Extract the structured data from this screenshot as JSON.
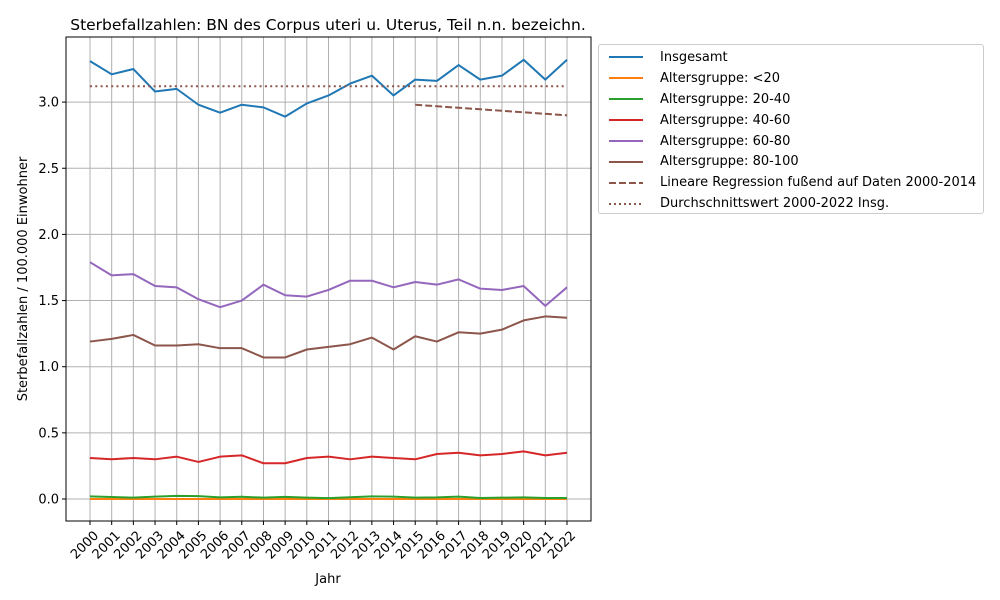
{
  "chart_data": {
    "type": "line",
    "title": "Sterbefallzahlen: BN des Corpus uteri u. Uterus, Teil n.n. bezeichn.",
    "xlabel": "Jahr",
    "ylabel": "Sterbefallzahlen / 100.000 Einwohner",
    "ylim": [
      -0.17,
      3.47
    ],
    "yticks": [
      0.0,
      0.5,
      1.0,
      1.5,
      2.0,
      2.5,
      3.0
    ],
    "ytick_labels": [
      "0.0",
      "0.5",
      "1.0",
      "1.5",
      "2.0",
      "2.5",
      "3.0"
    ],
    "grid": true,
    "legend_position": "outside upper right",
    "x": [
      2000,
      2001,
      2002,
      2003,
      2004,
      2005,
      2006,
      2007,
      2008,
      2009,
      2010,
      2011,
      2012,
      2013,
      2014,
      2015,
      2016,
      2017,
      2018,
      2019,
      2020,
      2021,
      2022
    ],
    "series": [
      {
        "name": "Insgesamt",
        "color": "#1f77b4",
        "style": "solid",
        "values": [
          3.31,
          3.21,
          3.25,
          3.08,
          3.1,
          2.98,
          2.92,
          2.98,
          2.96,
          2.89,
          2.99,
          3.05,
          3.14,
          3.2,
          3.05,
          3.17,
          3.16,
          3.28,
          3.17,
          3.2,
          3.32,
          3.17,
          3.32
        ]
      },
      {
        "name": "Altersgruppe: <20",
        "color": "#ff7f0e",
        "style": "solid",
        "values": [
          0.0,
          0.0,
          0.0,
          0.0,
          0.0,
          0.0,
          0.0,
          0.0,
          0.0,
          0.0,
          0.0,
          0.0,
          0.0,
          0.0,
          0.0,
          0.0,
          0.0,
          0.0,
          0.0,
          0.0,
          0.0,
          0.0,
          0.0
        ]
      },
      {
        "name": "Altersgruppe: 20-40",
        "color": "#2ca02c",
        "style": "solid",
        "values": [
          0.02,
          0.015,
          0.01,
          0.018,
          0.024,
          0.022,
          0.012,
          0.017,
          0.01,
          0.016,
          0.01,
          0.007,
          0.013,
          0.02,
          0.018,
          0.01,
          0.012,
          0.018,
          0.008,
          0.01,
          0.012,
          0.008,
          0.008
        ]
      },
      {
        "name": "Altersgruppe: 40-60",
        "color": "#d62728",
        "style": "solid",
        "values": [
          0.31,
          0.3,
          0.31,
          0.3,
          0.32,
          0.28,
          0.32,
          0.33,
          0.27,
          0.27,
          0.31,
          0.32,
          0.3,
          0.32,
          0.31,
          0.3,
          0.34,
          0.35,
          0.33,
          0.34,
          0.36,
          0.33,
          0.35
        ]
      },
      {
        "name": "Altersgruppe: 60-80",
        "color": "#9467bd",
        "style": "solid",
        "values": [
          1.79,
          1.69,
          1.7,
          1.61,
          1.6,
          1.51,
          1.45,
          1.5,
          1.62,
          1.54,
          1.53,
          1.58,
          1.65,
          1.65,
          1.6,
          1.64,
          1.62,
          1.66,
          1.59,
          1.58,
          1.61,
          1.46,
          1.6
        ]
      },
      {
        "name": "Altersgruppe: 80-100",
        "color": "#8c564b",
        "style": "solid",
        "values": [
          1.19,
          1.21,
          1.24,
          1.16,
          1.16,
          1.17,
          1.14,
          1.14,
          1.07,
          1.07,
          1.13,
          1.15,
          1.17,
          1.22,
          1.13,
          1.23,
          1.19,
          1.26,
          1.25,
          1.28,
          1.35,
          1.38,
          1.37
        ]
      },
      {
        "name": "Lineare Regression fußend auf Daten 2000-2014",
        "color": "#8c564b",
        "style": "dashed",
        "x": [
          2015,
          2022
        ],
        "values": [
          2.98,
          2.9
        ]
      },
      {
        "name": "Durchschnittswert 2000-2022 Insg.",
        "color": "#8c564b",
        "style": "dotted",
        "x": [
          2000,
          2022
        ],
        "values": [
          3.12,
          3.12
        ]
      }
    ]
  },
  "legend": {
    "items": [
      {
        "label": "Insgesamt"
      },
      {
        "label": "Altersgruppe: <20"
      },
      {
        "label": "Altersgruppe: 20-40"
      },
      {
        "label": "Altersgruppe: 40-60"
      },
      {
        "label": "Altersgruppe: 60-80"
      },
      {
        "label": "Altersgruppe: 80-100"
      },
      {
        "label": "Lineare Regression fußend auf Daten 2000-2014"
      },
      {
        "label": "Durchschnittswert 2000-2022 Insg."
      }
    ]
  }
}
